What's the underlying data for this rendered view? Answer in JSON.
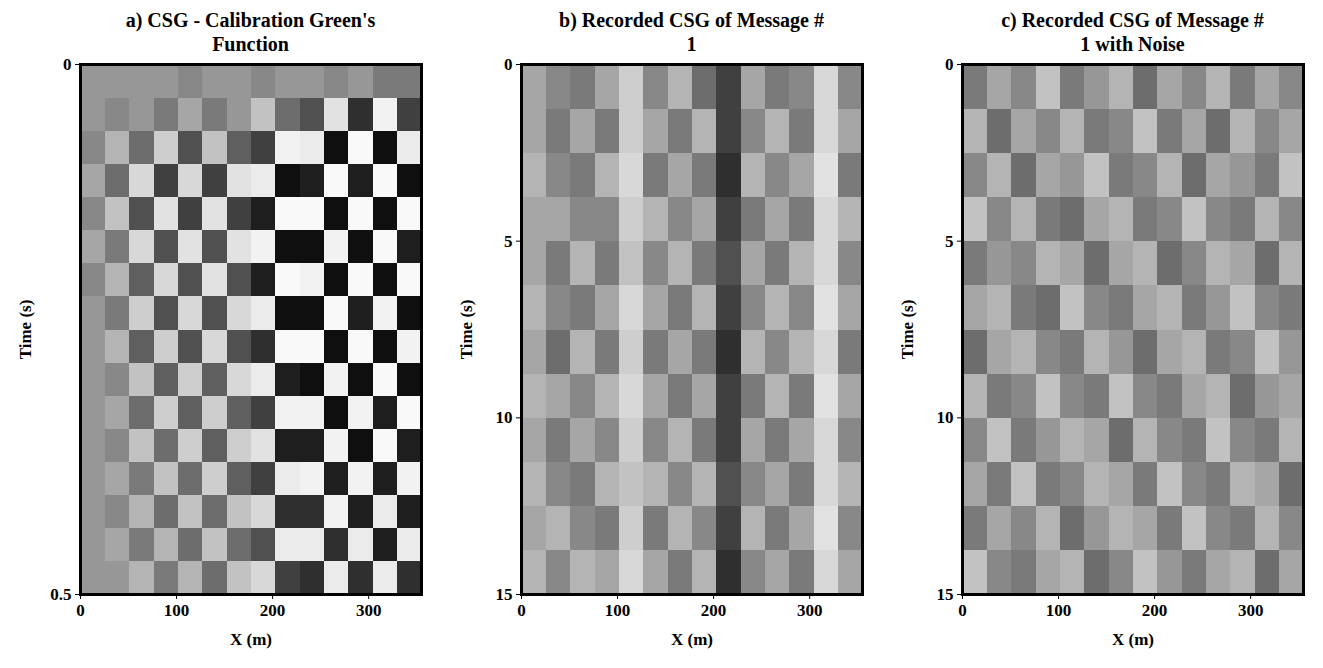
{
  "chart_data": [
    {
      "type": "heatmap",
      "title": "a) CSG - Calibration Green's Function",
      "x_label": "X (m)",
      "y_label": "Time (s)",
      "xlim": [
        0,
        355
      ],
      "xticks": [
        0,
        100,
        200,
        300
      ],
      "ylim": [
        0,
        0.5
      ],
      "yticks": [
        0,
        0.5
      ],
      "zlim": [
        -1,
        1
      ],
      "cells": {
        "z": [
          [
            0,
            0,
            0,
            0,
            0.1,
            0,
            0,
            0.1,
            0,
            0,
            0.1,
            0,
            0.2,
            0.2
          ],
          [
            0,
            0.1,
            0,
            0.2,
            -0.1,
            0.2,
            0,
            -0.3,
            0.3,
            0.5,
            -0.6,
            0.7,
            -0.8,
            0.6
          ],
          [
            0.1,
            -0.2,
            0.3,
            -0.4,
            0.5,
            -0.3,
            0.4,
            0.6,
            -0.8,
            -0.7,
            0.9,
            -0.9,
            0.9,
            -0.7
          ],
          [
            -0.1,
            0.3,
            -0.5,
            0.6,
            -0.5,
            0.6,
            -0.6,
            -0.7,
            0.9,
            0.8,
            -0.9,
            0.8,
            -0.9,
            0.9
          ],
          [
            0.1,
            -0.3,
            0.5,
            -0.6,
            0.6,
            -0.6,
            0.6,
            0.8,
            -0.9,
            -0.9,
            0.9,
            -0.9,
            0.9,
            -0.9
          ],
          [
            -0.1,
            0.2,
            -0.5,
            0.5,
            -0.6,
            0.5,
            -0.6,
            -0.8,
            0.9,
            0.9,
            -0.8,
            0.9,
            -0.9,
            0.8
          ],
          [
            0.1,
            -0.2,
            0.4,
            -0.5,
            0.5,
            -0.6,
            0.5,
            0.8,
            -0.9,
            -0.8,
            0.9,
            -0.9,
            0.9,
            -0.9
          ],
          [
            0,
            0.2,
            -0.4,
            0.5,
            -0.5,
            0.5,
            -0.5,
            -0.7,
            0.9,
            0.9,
            -0.9,
            0.8,
            -0.8,
            0.9
          ],
          [
            0,
            -0.2,
            0.4,
            -0.4,
            0.5,
            -0.5,
            0.5,
            0.7,
            -0.9,
            -0.9,
            0.9,
            -0.9,
            0.9,
            -0.8
          ],
          [
            0,
            0.1,
            -0.3,
            0.4,
            -0.4,
            0.4,
            -0.5,
            -0.7,
            0.8,
            0.9,
            -0.8,
            0.9,
            -0.9,
            0.9
          ],
          [
            0,
            -0.1,
            0.3,
            -0.4,
            0.4,
            -0.4,
            0.4,
            0.6,
            -0.8,
            -0.8,
            0.9,
            -0.8,
            0.8,
            -0.9
          ],
          [
            0,
            0.1,
            -0.3,
            0.3,
            -0.4,
            0.4,
            -0.4,
            -0.6,
            0.8,
            0.8,
            -0.8,
            0.9,
            -0.9,
            0.8
          ],
          [
            0,
            -0.1,
            0.2,
            -0.3,
            0.3,
            -0.4,
            0.4,
            0.6,
            -0.7,
            -0.8,
            0.8,
            -0.8,
            0.8,
            -0.8
          ],
          [
            0,
            0.1,
            -0.2,
            0.3,
            -0.3,
            0.3,
            -0.3,
            -0.5,
            0.7,
            0.7,
            -0.8,
            0.8,
            -0.7,
            0.8
          ],
          [
            0,
            -0.1,
            0.2,
            -0.2,
            0.3,
            -0.3,
            0.3,
            0.5,
            -0.7,
            -0.7,
            0.7,
            -0.7,
            0.8,
            -0.7
          ],
          [
            0,
            0,
            -0.2,
            0.2,
            -0.2,
            0.3,
            -0.3,
            -0.5,
            0.6,
            0.7,
            -0.7,
            0.7,
            -0.7,
            0.7
          ]
        ]
      }
    },
    {
      "type": "heatmap",
      "title": "b) Recorded CSG of Message # 1",
      "x_label": "X (m)",
      "y_label": "Time (s)",
      "xlim": [
        0,
        355
      ],
      "xticks": [
        0,
        100,
        200,
        300
      ],
      "ylim": [
        0,
        15
      ],
      "yticks": [
        0,
        5,
        10,
        15
      ],
      "zlim": [
        -1,
        1
      ],
      "cells": {
        "z": [
          [
            -0.1,
            0.1,
            0.2,
            -0.1,
            -0.4,
            0.1,
            -0.2,
            0.3,
            0.6,
            -0.1,
            0.2,
            0.1,
            -0.5,
            0.1
          ],
          [
            -0.1,
            0.2,
            -0.1,
            0.2,
            -0.4,
            -0.1,
            0.2,
            -0.2,
            0.6,
            0.1,
            -0.2,
            0.2,
            -0.5,
            -0.1
          ],
          [
            -0.2,
            0.1,
            0.2,
            -0.2,
            -0.5,
            0.2,
            -0.1,
            0.2,
            0.7,
            -0.2,
            0.1,
            -0.1,
            -0.6,
            0.2
          ],
          [
            -0.1,
            -0.1,
            0.1,
            0.1,
            -0.4,
            -0.2,
            0.1,
            -0.1,
            0.6,
            0.2,
            -0.1,
            0.2,
            -0.5,
            -0.2
          ],
          [
            -0.1,
            0.2,
            -0.2,
            0.2,
            -0.3,
            0.1,
            -0.2,
            0.2,
            0.5,
            -0.1,
            0.2,
            -0.2,
            -0.5,
            0.1
          ],
          [
            -0.2,
            0.1,
            0.2,
            -0.1,
            -0.5,
            -0.1,
            0.2,
            -0.2,
            0.6,
            0.1,
            -0.2,
            0.1,
            -0.6,
            -0.1
          ],
          [
            -0.1,
            0.3,
            -0.2,
            0.2,
            -0.4,
            0.2,
            -0.1,
            0.2,
            0.7,
            -0.2,
            0.1,
            -0.2,
            -0.5,
            0.2
          ],
          [
            -0.2,
            -0.1,
            0.1,
            -0.2,
            -0.5,
            -0.1,
            0.2,
            -0.1,
            0.6,
            0.2,
            -0.2,
            0.2,
            -0.6,
            -0.1
          ],
          [
            -0.1,
            0.2,
            -0.1,
            0.1,
            -0.4,
            0.1,
            -0.2,
            0.2,
            0.6,
            -0.1,
            0.2,
            -0.1,
            -0.5,
            0.1
          ],
          [
            -0.2,
            0.1,
            0.2,
            -0.2,
            -0.3,
            -0.2,
            0.1,
            -0.2,
            0.5,
            0.1,
            -0.1,
            0.2,
            -0.5,
            -0.2
          ],
          [
            -0.1,
            -0.2,
            0.1,
            0.2,
            -0.4,
            0.2,
            -0.2,
            0.1,
            0.6,
            -0.2,
            0.2,
            -0.1,
            -0.6,
            0.1
          ],
          [
            -0.2,
            0.1,
            -0.2,
            -0.1,
            -0.5,
            -0.1,
            0.2,
            -0.2,
            0.7,
            0.1,
            -0.1,
            0.2,
            -0.5,
            -0.1
          ]
        ]
      }
    },
    {
      "type": "heatmap",
      "title": "c) Recorded CSG of Message # 1 with Noise",
      "x_label": "X (m)",
      "y_label": "Time (s)",
      "xlim": [
        0,
        355
      ],
      "xticks": [
        0,
        100,
        200,
        300
      ],
      "ylim": [
        0,
        15
      ],
      "yticks": [
        0,
        5,
        10,
        15
      ],
      "zlim": [
        -1,
        1
      ],
      "cells": {
        "z": [
          [
            0.2,
            -0.1,
            0.1,
            -0.3,
            0.2,
            0,
            -0.2,
            0.3,
            -0.1,
            0.1,
            -0.2,
            0.2,
            -0.1,
            0.1
          ],
          [
            -0.2,
            0.3,
            -0.1,
            0.1,
            -0.2,
            0.2,
            0.1,
            -0.3,
            0.2,
            -0.1,
            0.3,
            -0.2,
            0.1,
            -0.1
          ],
          [
            0.1,
            -0.2,
            0.3,
            -0.1,
            0,
            -0.3,
            0.2,
            0.1,
            -0.2,
            0.3,
            -0.1,
            0,
            0.2,
            -0.3
          ],
          [
            -0.3,
            0.1,
            -0.2,
            0.2,
            0.3,
            -0.1,
            -0.2,
            0.2,
            0.1,
            -0.3,
            0.1,
            0.2,
            -0.2,
            0.1
          ],
          [
            0.2,
            0,
            0.1,
            -0.2,
            -0.1,
            0.3,
            -0.1,
            -0.2,
            0.3,
            0.1,
            -0.2,
            -0.1,
            0.3,
            -0.2
          ],
          [
            -0.1,
            -0.2,
            0.2,
            0.3,
            -0.3,
            0.1,
            0.2,
            -0.1,
            -0.2,
            0.2,
            0,
            -0.3,
            0.1,
            0.2
          ],
          [
            0.3,
            -0.1,
            -0.2,
            0.1,
            0.2,
            -0.2,
            0,
            0.3,
            -0.1,
            -0.2,
            0.2,
            0.1,
            -0.3,
            0
          ],
          [
            -0.2,
            0.2,
            0.1,
            -0.3,
            0.1,
            0.2,
            -0.3,
            0.1,
            0.2,
            -0.1,
            -0.2,
            0.3,
            0,
            -0.1
          ],
          [
            0.1,
            -0.3,
            0.2,
            0,
            -0.2,
            -0.1,
            0.3,
            -0.2,
            0.1,
            0.2,
            -0.3,
            0.1,
            0.2,
            -0.2
          ],
          [
            -0.1,
            0.2,
            -0.3,
            0.2,
            0.1,
            -0.2,
            -0.1,
            0.2,
            -0.3,
            0.1,
            0.2,
            -0.2,
            -0.1,
            0.3
          ],
          [
            0.2,
            -0.1,
            0.1,
            -0.2,
            0.3,
            0,
            -0.2,
            -0.1,
            0.2,
            -0.3,
            0.1,
            0.2,
            -0.2,
            0.1
          ],
          [
            -0.3,
            0.1,
            0.2,
            -0.1,
            -0.2,
            0.3,
            0.1,
            -0.3,
            0,
            0.2,
            -0.1,
            -0.2,
            0.3,
            -0.1
          ]
        ]
      }
    }
  ]
}
